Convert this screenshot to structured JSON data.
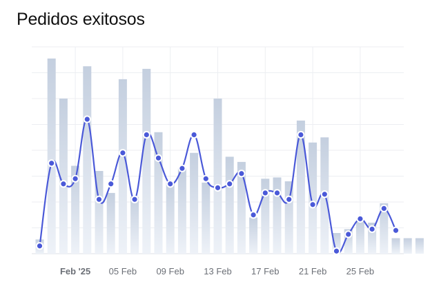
{
  "header": {
    "title": "Pedidos exitosos"
  },
  "chart_data": {
    "type": "bar",
    "title": "Pedidos exitosos",
    "xlabel": "",
    "ylabel": "",
    "ylim": [
      0,
      8
    ],
    "grid": true,
    "categories": [
      "2025-01-29",
      "2025-01-30",
      "2025-01-31",
      "2025-02-01",
      "2025-02-02",
      "2025-02-03",
      "2025-02-04",
      "2025-02-05",
      "2025-02-06",
      "2025-02-07",
      "2025-02-08",
      "2025-02-09",
      "2025-02-10",
      "2025-02-11",
      "2025-02-12",
      "2025-02-13",
      "2025-02-14",
      "2025-02-15",
      "2025-02-16",
      "2025-02-17",
      "2025-02-18",
      "2025-02-19",
      "2025-02-20",
      "2025-02-21",
      "2025-02-22",
      "2025-02-23",
      "2025-02-24",
      "2025-02-25",
      "2025-02-26",
      "2025-02-27",
      "2025-02-28",
      "2025-03-01",
      "2025-03-02"
    ],
    "tick_labels": [
      {
        "at": "2025-02-01",
        "label": "Feb '25",
        "bold": true
      },
      {
        "at": "2025-02-05",
        "label": "05 Feb",
        "bold": false
      },
      {
        "at": "2025-02-09",
        "label": "09 Feb",
        "bold": false
      },
      {
        "at": "2025-02-13",
        "label": "13 Feb",
        "bold": false
      },
      {
        "at": "2025-02-17",
        "label": "17 Feb",
        "bold": false
      },
      {
        "at": "2025-02-21",
        "label": "21 Feb",
        "bold": false
      },
      {
        "at": "2025-02-25",
        "label": "25 Feb",
        "bold": false
      }
    ],
    "series": [
      {
        "kind": "bar",
        "values": [
          0.55,
          7.55,
          6.0,
          3.4,
          7.25,
          3.2,
          2.35,
          6.75,
          2.2,
          7.15,
          4.7,
          2.75,
          3.3,
          3.9,
          2.75,
          6.0,
          3.75,
          3.55,
          1.4,
          2.9,
          2.95,
          2.8,
          5.15,
          4.3,
          4.5,
          0.8,
          0.95,
          1.25,
          1.2,
          1.95,
          0.6,
          0.6,
          0.6
        ]
      },
      {
        "kind": "line",
        "values": [
          0.3,
          3.5,
          2.7,
          2.9,
          5.2,
          2.1,
          2.7,
          3.9,
          2.1,
          4.6,
          3.7,
          2.7,
          3.3,
          4.6,
          2.9,
          2.55,
          2.7,
          3.1,
          1.5,
          2.35,
          2.35,
          2.1,
          4.6,
          1.9,
          2.3,
          0.1,
          0.75,
          1.35,
          0.95,
          1.75,
          0.9,
          null,
          null
        ]
      }
    ],
    "colors": {
      "bar_top": "#c4cfdf",
      "bar_bottom": "#eef2f8",
      "line": "#4a59d8",
      "grid": "#eceef2"
    }
  }
}
